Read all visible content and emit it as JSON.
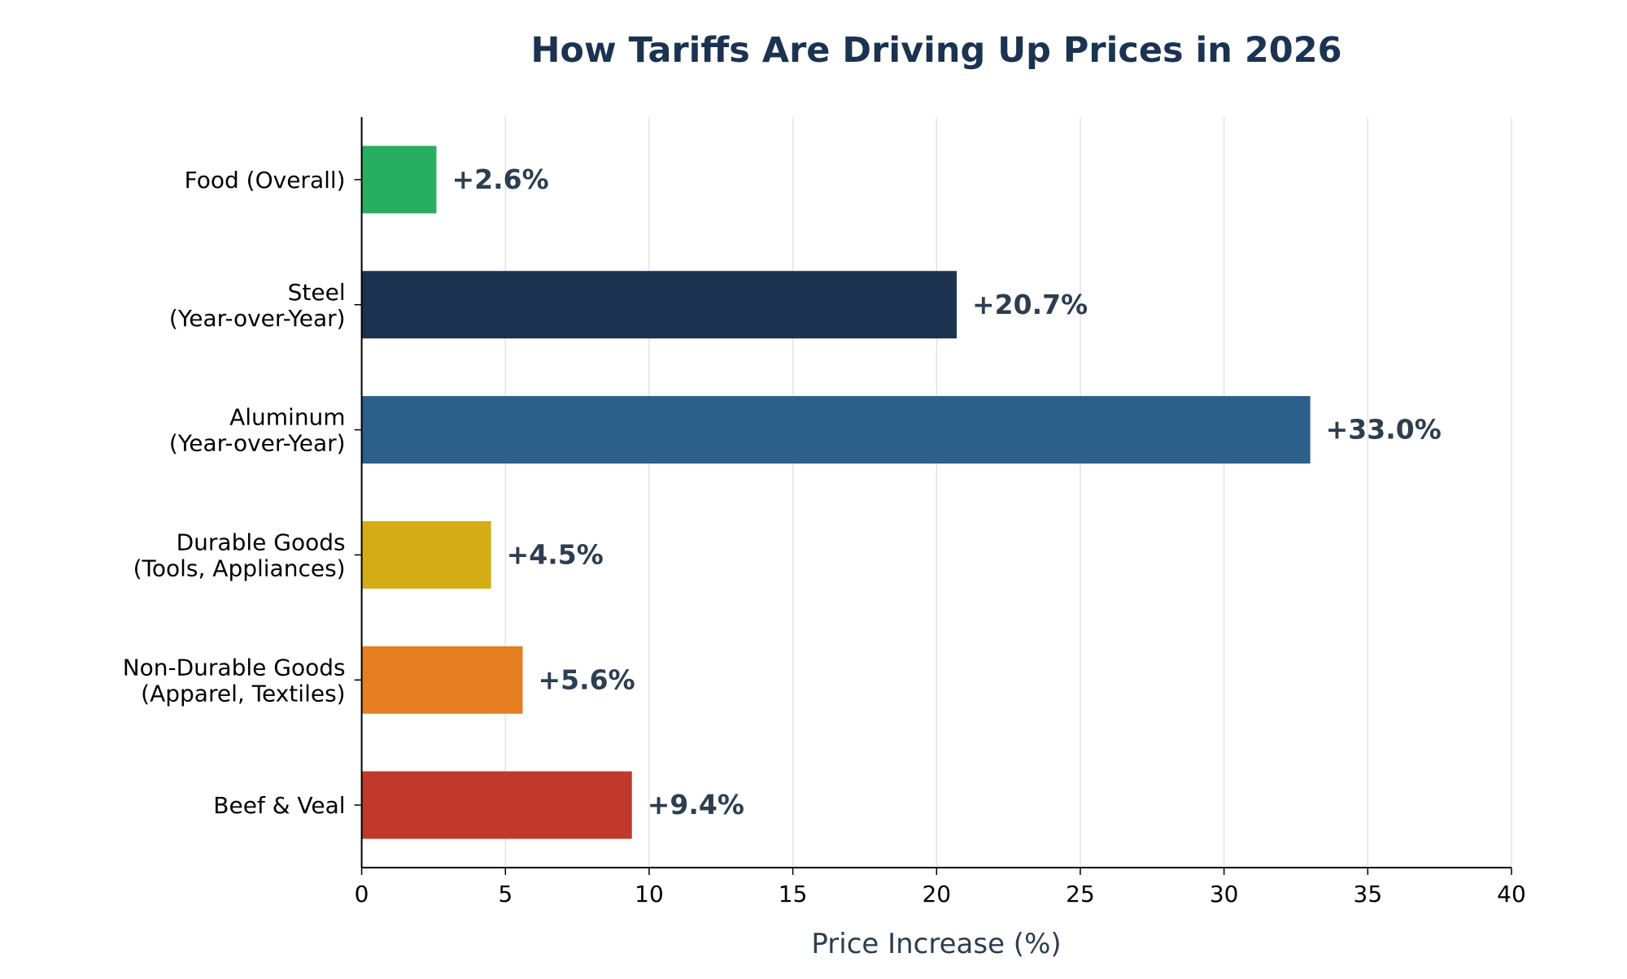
{
  "chart_data": {
    "type": "bar",
    "orientation": "horizontal",
    "title": "How Tariffs Are Driving Up Prices in 2026",
    "xlabel": "Price Increase (%)",
    "ylabel": "",
    "xlim": [
      0,
      40
    ],
    "xticks": [
      "0",
      "5",
      "10",
      "15",
      "20",
      "25",
      "30",
      "35",
      "40"
    ],
    "grid": "vertical",
    "categories": [
      [
        "Food (Overall)"
      ],
      [
        "Steel",
        "(Year-over-Year)"
      ],
      [
        "Aluminum",
        "(Year-over-Year)"
      ],
      [
        "Durable Goods",
        "(Tools, Appliances)"
      ],
      [
        "Non-Durable Goods",
        "(Apparel, Textiles)"
      ],
      [
        "Beef & Veal"
      ]
    ],
    "values": [
      2.6,
      20.7,
      33.0,
      4.5,
      5.6,
      9.4
    ],
    "data_labels": [
      "+2.6%",
      "+20.7%",
      "+33.0%",
      "+4.5%",
      "+5.6%",
      "+9.4%"
    ],
    "colors": [
      "#27ae60",
      "#1b3351",
      "#2c5f8a",
      "#d4ac16",
      "#e67e22",
      "#c0392b"
    ],
    "title_color": "#1b3351",
    "label_color": "#2c3e50"
  }
}
